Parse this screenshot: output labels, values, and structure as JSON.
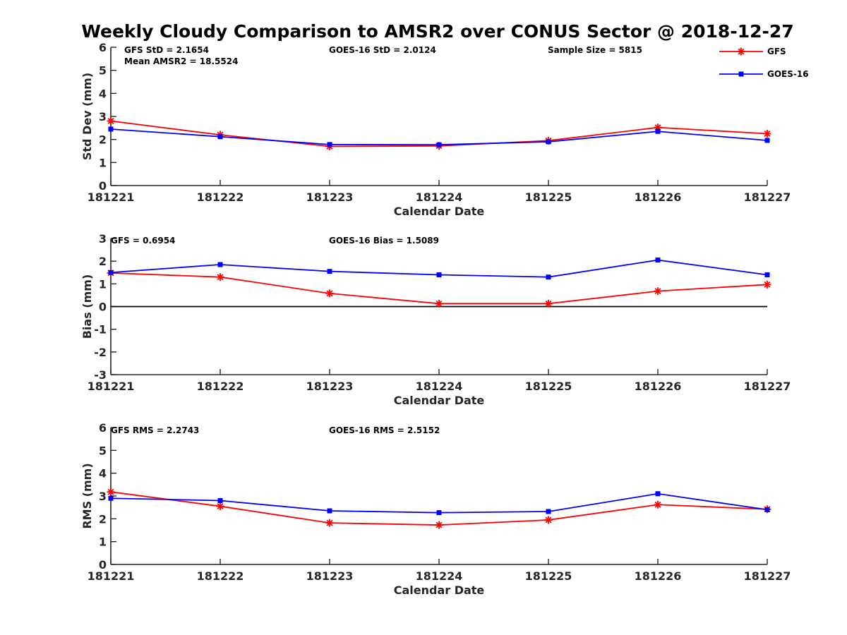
{
  "title": "Weekly Cloudy Comparison to AMSR2 over CONUS Sector @ 2018-12-27",
  "colors": {
    "gfs": "#ff0000",
    "goes": "#0000ff",
    "axis": "#262626"
  },
  "legend": {
    "placement": "top-right",
    "entries": [
      {
        "name": "GFS",
        "color": "#ff0000",
        "marker": "asterisk"
      },
      {
        "name": "GOES-16",
        "color": "#0000ff",
        "marker": "square"
      }
    ]
  },
  "chart_data": [
    {
      "type": "line",
      "ylabel": "Std Dev (mm)",
      "xlabel": "Calendar Date",
      "categories": [
        "181221",
        "181222",
        "181223",
        "181224",
        "181225",
        "181226",
        "181227"
      ],
      "ylim": [
        0,
        6
      ],
      "yticks": [
        "0",
        "1",
        "2",
        "3",
        "4",
        "5",
        "6"
      ],
      "zero_line": false,
      "annotations": [
        "GFS StD = 2.1654",
        "Mean AMSR2 = 18.5524",
        "GOES-16 StD = 2.0124",
        "Sample Size = 5815"
      ],
      "series": [
        {
          "name": "GFS",
          "values": [
            2.8,
            2.2,
            1.7,
            1.72,
            1.95,
            2.52,
            2.25
          ]
        },
        {
          "name": "GOES-16",
          "values": [
            2.45,
            2.12,
            1.78,
            1.77,
            1.9,
            2.35,
            1.96
          ]
        }
      ]
    },
    {
      "type": "line",
      "ylabel": "Bias (mm)",
      "xlabel": "Calendar Date",
      "categories": [
        "181221",
        "181222",
        "181223",
        "181224",
        "181225",
        "181226",
        "181227"
      ],
      "ylim": [
        -3,
        3
      ],
      "yticks": [
        "-3",
        "-2",
        "-1",
        "0",
        "1",
        "2",
        "3"
      ],
      "zero_line": true,
      "annotations": [
        "GFS = 0.6954",
        "GOES-16 Bias  = 1.5089"
      ],
      "series": [
        {
          "name": "GFS",
          "values": [
            1.48,
            1.3,
            0.58,
            0.13,
            0.13,
            0.68,
            0.97
          ]
        },
        {
          "name": "GOES-16",
          "values": [
            1.5,
            1.85,
            1.55,
            1.4,
            1.3,
            2.05,
            1.4
          ]
        }
      ]
    },
    {
      "type": "line",
      "ylabel": "RMS (mm)",
      "xlabel": "Calendar Date",
      "categories": [
        "181221",
        "181222",
        "181223",
        "181224",
        "181225",
        "181226",
        "181227"
      ],
      "ylim": [
        0,
        6
      ],
      "yticks": [
        "0",
        "1",
        "2",
        "3",
        "4",
        "5",
        "6"
      ],
      "zero_line": false,
      "annotations": [
        "GFS RMS = 2.2743",
        "GOES-16 RMS = 2.5152"
      ],
      "series": [
        {
          "name": "GFS",
          "values": [
            3.18,
            2.55,
            1.82,
            1.73,
            1.95,
            2.62,
            2.42
          ]
        },
        {
          "name": "GOES-16",
          "values": [
            2.9,
            2.8,
            2.35,
            2.27,
            2.32,
            3.1,
            2.4
          ]
        }
      ]
    }
  ]
}
